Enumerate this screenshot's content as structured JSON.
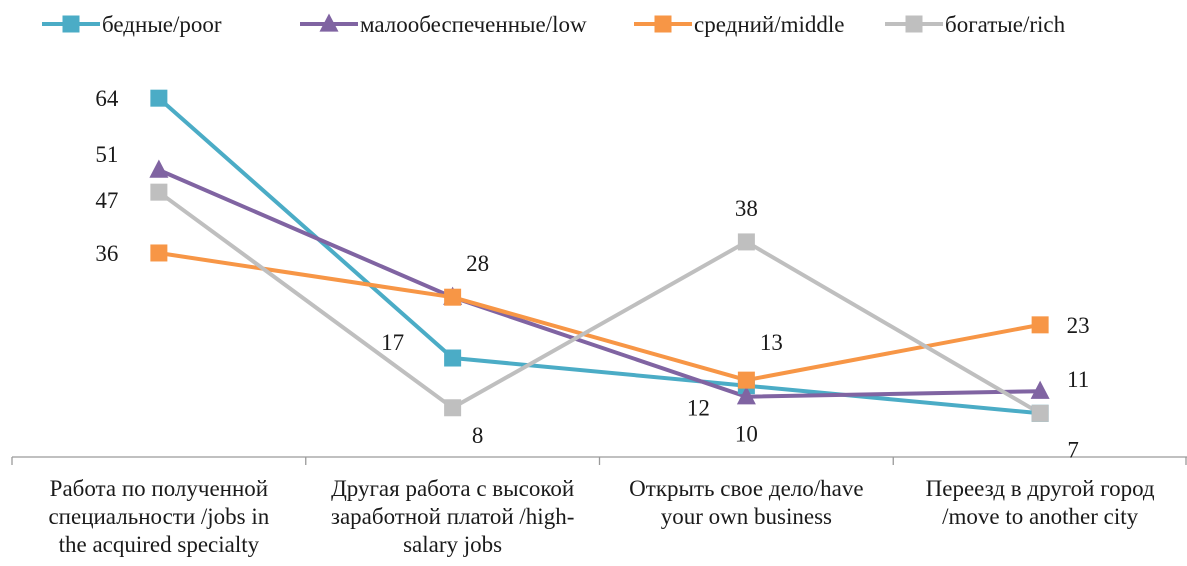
{
  "chart_data": {
    "type": "line",
    "categories": [
      [
        "Работа по полученной",
        "специальности /jobs in",
        "the acquired specialty"
      ],
      [
        "Другая работа с высокой",
        "заработной платой /high-",
        "salary jobs"
      ],
      [
        "Открыть свое дело/have",
        "your own business"
      ],
      [
        "Переезд в другой город",
        "/move to another city"
      ]
    ],
    "series": [
      {
        "name": "бедные/poor",
        "values": [
          64,
          17,
          12,
          7
        ],
        "color": "#4BACC6",
        "marker": "square"
      },
      {
        "name": "малообеспеченные/low",
        "values": [
          51,
          28,
          10,
          11
        ],
        "color": "#8064A2",
        "marker": "triangle"
      },
      {
        "name": "средний/middle",
        "values": [
          36,
          28,
          13,
          23
        ],
        "color": "#F79646",
        "marker": "square"
      },
      {
        "name": "богатые/rich",
        "values": [
          47,
          8,
          38,
          7
        ],
        "color": "#BFBFBF",
        "marker": "square"
      }
    ],
    "data_labels": [
      {
        "category": 0,
        "value": 64,
        "text": "64"
      },
      {
        "category": 0,
        "value": 51,
        "text": "51"
      },
      {
        "category": 0,
        "value": 47,
        "text": "47"
      },
      {
        "category": 0,
        "value": 36,
        "text": "36"
      },
      {
        "category": 1,
        "value": 28,
        "text": "28"
      },
      {
        "category": 1,
        "value": 17,
        "text": "17"
      },
      {
        "category": 1,
        "value": 8,
        "text": "8"
      },
      {
        "category": 2,
        "value": 38,
        "text": "38"
      },
      {
        "category": 2,
        "value": 13,
        "text": "13"
      },
      {
        "category": 2,
        "value": 12,
        "text": "12"
      },
      {
        "category": 2,
        "value": 10,
        "text": "10"
      },
      {
        "category": 3,
        "value": 23,
        "text": "23"
      },
      {
        "category": 3,
        "value": 11,
        "text": "11"
      },
      {
        "category": 3,
        "value": 7,
        "text": "7"
      }
    ],
    "title": "",
    "xlabel": "",
    "ylabel": "",
    "ylim": [
      0,
      70
    ],
    "grid": false,
    "legend": "top"
  }
}
